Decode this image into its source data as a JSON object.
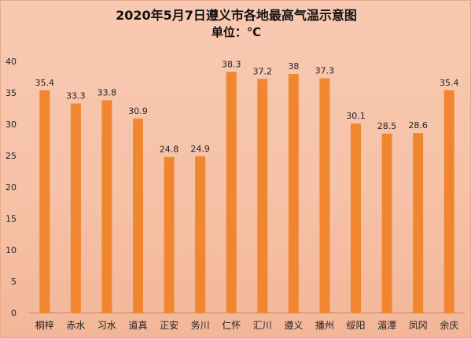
{
  "chart_data": {
    "type": "bar",
    "title": "2020年5月7日遵义市各地最高气温示意图",
    "subtitle": "单位：℃",
    "categories": [
      "桐梓",
      "赤水",
      "习水",
      "道真",
      "正安",
      "务川",
      "仁怀",
      "汇川",
      "遵义",
      "播州",
      "绥阳",
      "湄潭",
      "凤冈",
      "余庆"
    ],
    "values": [
      35.4,
      33.3,
      33.8,
      30.9,
      24.8,
      24.9,
      38.3,
      37.2,
      38,
      37.3,
      30.1,
      28.5,
      28.6,
      35.4
    ],
    "value_labels": [
      "35.4",
      "33.3",
      "33.8",
      "30.9",
      "24.8",
      "24.9",
      "38.3",
      "37.2",
      "38",
      "37.3",
      "30.1",
      "28.5",
      "28.6",
      "35.4"
    ],
    "ylim": [
      0,
      40
    ],
    "yticks": [
      0,
      5,
      10,
      15,
      20,
      25,
      30,
      35,
      40
    ],
    "grid": false,
    "bar_color": "#f0862f",
    "background_color": "#f7c4aa"
  }
}
